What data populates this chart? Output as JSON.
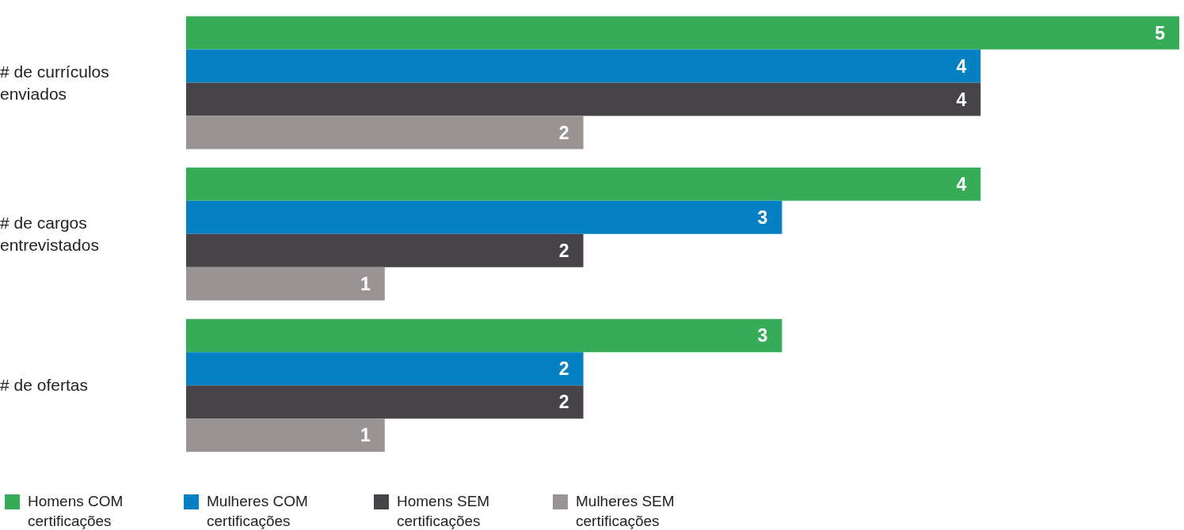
{
  "chart_data": {
    "type": "bar",
    "orientation": "horizontal",
    "categories": [
      "# de currículos enviados",
      "# de cargos entrevistados",
      "# de ofertas"
    ],
    "series": [
      {
        "name": "Homens COM certificações",
        "color": "#36ac58",
        "values": [
          5,
          4,
          3
        ]
      },
      {
        "name": "Mulheres COM certificações",
        "color": "#0480c3",
        "values": [
          4,
          3,
          2
        ]
      },
      {
        "name": "Homens SEM certificações",
        "color": "#464448",
        "values": [
          4,
          2,
          2
        ]
      },
      {
        "name": "Mulheres SEM certificações",
        "color": "#999394",
        "values": [
          2,
          1,
          1
        ]
      }
    ],
    "data_labels": true,
    "legend": "bottom"
  }
}
